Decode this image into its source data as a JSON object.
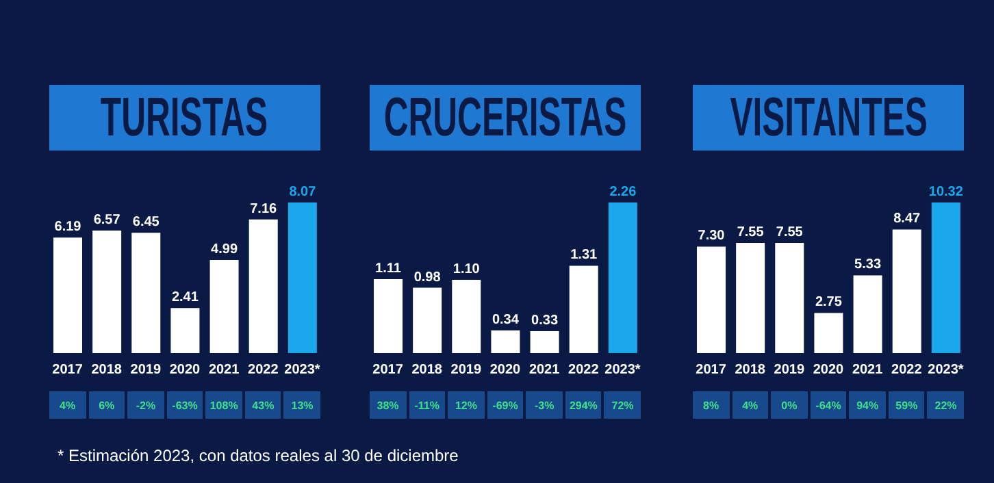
{
  "chart_data": [
    {
      "type": "bar",
      "title": "TURISTAS",
      "categories": [
        "2017",
        "2018",
        "2019",
        "2020",
        "2021",
        "2022",
        "2023*"
      ],
      "values": [
        6.19,
        6.57,
        6.45,
        2.41,
        4.99,
        7.16,
        8.07
      ],
      "colors": [
        "#ffffff",
        "#ffffff",
        "#ffffff",
        "#ffffff",
        "#ffffff",
        "#ffffff",
        "#1aa7ec"
      ],
      "value_labels": [
        "6.19",
        "6.57",
        "6.45",
        "2.41",
        "4.99",
        "7.16",
        "8.07"
      ],
      "annotations": [
        "4%",
        "6%",
        "-2%",
        "-63%",
        "108%",
        "43%",
        "13%",
        "* Estimación 2023, con datos reales al 30 de diciembre"
      ]
    },
    {
      "type": "bar",
      "title": "CRUCERISTAS",
      "categories": [
        "2017",
        "2018",
        "2019",
        "2020",
        "2021",
        "2022",
        "2023*"
      ],
      "values": [
        1.11,
        0.98,
        1.1,
        0.34,
        0.33,
        1.31,
        2.26
      ],
      "colors": [
        "#ffffff",
        "#ffffff",
        "#ffffff",
        "#ffffff",
        "#ffffff",
        "#ffffff",
        "#1aa7ec"
      ],
      "value_labels": [
        "1.11",
        "0.98",
        "1.10",
        "0.34",
        "0.33",
        "1.31",
        "2.26"
      ],
      "annotations": [
        "38%",
        "-11%",
        "12%",
        "-69%",
        "-3%",
        "294%",
        "72%"
      ]
    },
    {
      "type": "bar",
      "title": "VISITANTES",
      "categories": [
        "2017",
        "2018",
        "2019",
        "2020",
        "2021",
        "2022",
        "2023*"
      ],
      "values": [
        7.3,
        7.55,
        7.55,
        2.75,
        5.33,
        8.47,
        10.32
      ],
      "colors": [
        "#ffffff",
        "#ffffff",
        "#ffffff",
        "#ffffff",
        "#ffffff",
        "#ffffff",
        "#1aa7ec"
      ],
      "value_labels": [
        "7.30",
        "7.55",
        "7.55",
        "2.75",
        "5.33",
        "8.47",
        "10.32"
      ],
      "annotations": [
        "8%",
        "4%",
        "0%",
        "-64%",
        "94%",
        "59%",
        "22%"
      ]
    }
  ]
}
